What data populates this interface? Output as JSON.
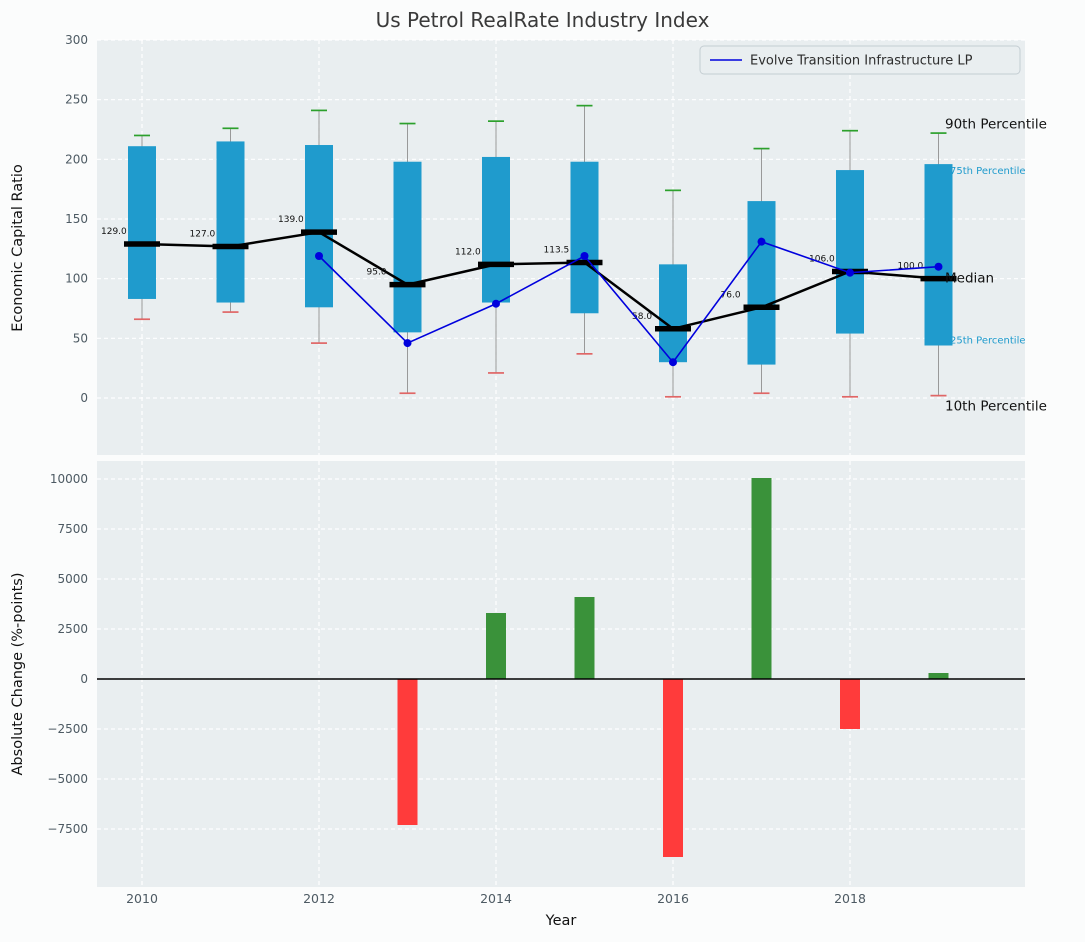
{
  "title": "Us Petrol RealRate Industry Index",
  "legend": {
    "series_label": "Evolve Transition Infrastructure LP"
  },
  "colors": {
    "figure_bg": "#fbfcfc",
    "axes_bg": "#e9eef0",
    "grid": "#ffffff",
    "box": "#1f9bcd",
    "whisker": "#999999",
    "cap_high": "#2ca02c",
    "cap_low": "#e06666",
    "median": "#000000",
    "company_line": "#0000dd",
    "bar_up": "#3a923a",
    "bar_down": "#ff3b3b",
    "tick_label": "#4d5a63",
    "text": "#111111",
    "title_color": "#3a3a3a",
    "percentile_minor": "#1f9bcd"
  },
  "chart_data": [
    {
      "type": "box",
      "title": "Us Petrol RealRate Industry Index",
      "ylabel": "Economic Capital Ratio",
      "ylim": [
        -48,
        300
      ],
      "yticks": [
        0,
        50,
        100,
        150,
        200,
        250,
        300
      ],
      "xticks": [
        2010,
        2012,
        2014,
        2016,
        2018
      ],
      "grid": true,
      "legend_position": "upper right",
      "years": [
        2010,
        2011,
        2012,
        2013,
        2014,
        2015,
        2016,
        2017,
        2018,
        2019
      ],
      "boxes": [
        {
          "year": 2010,
          "p10": 66,
          "q1": 83,
          "median": 129.0,
          "q3": 211,
          "p90": 220,
          "label": "129.0"
        },
        {
          "year": 2011,
          "p10": 72,
          "q1": 80,
          "median": 127.0,
          "q3": 215,
          "p90": 226,
          "label": "127.0"
        },
        {
          "year": 2012,
          "p10": 46,
          "q1": 76,
          "median": 139.0,
          "q3": 212,
          "p90": 241,
          "label": "139.0"
        },
        {
          "year": 2013,
          "p10": 4,
          "q1": 55,
          "median": 95.0,
          "q3": 198,
          "p90": 230,
          "label": "95.0"
        },
        {
          "year": 2014,
          "p10": 21,
          "q1": 80,
          "median": 112.0,
          "q3": 202,
          "p90": 232,
          "label": "112.0"
        },
        {
          "year": 2015,
          "p10": 37,
          "q1": 71,
          "median": 113.5,
          "q3": 198,
          "p90": 245,
          "label": "113.5"
        },
        {
          "year": 2016,
          "p10": 1,
          "q1": 30,
          "median": 58.0,
          "q3": 112,
          "p90": 174,
          "label": "58.0"
        },
        {
          "year": 2017,
          "p10": 4,
          "q1": 28,
          "median": 76.0,
          "q3": 165,
          "p90": 209,
          "label": "76.0"
        },
        {
          "year": 2018,
          "p10": 1,
          "q1": 54,
          "median": 106.0,
          "q3": 191,
          "p90": 224,
          "label": "106.0"
        },
        {
          "year": 2019,
          "p10": 2,
          "q1": 44,
          "median": 100.0,
          "q3": 196,
          "p90": 222,
          "label": "100.0"
        }
      ],
      "company_series": {
        "name": "Evolve Transition Infrastructure LP",
        "years": [
          2012,
          2013,
          2014,
          2015,
          2016,
          2017,
          2018,
          2019
        ],
        "values": [
          119,
          46,
          79,
          119,
          30,
          131,
          105,
          110
        ]
      },
      "right_annotations": [
        {
          "text": "90th Percentile",
          "value": 229,
          "style": "major"
        },
        {
          "text": "75th Percentile",
          "value": 191,
          "style": "minor"
        },
        {
          "text": "Median",
          "value": 100,
          "style": "major"
        },
        {
          "text": "25th Percentile",
          "value": 49,
          "style": "minor"
        },
        {
          "text": "10th Percentile",
          "value": -7,
          "style": "major"
        }
      ]
    },
    {
      "type": "bar",
      "ylabel": "Absolute Change (%-points)",
      "xlabel": "Year",
      "ylim": [
        -10400,
        10900
      ],
      "yticks": [
        -7500,
        -5000,
        -2500,
        0,
        2500,
        5000,
        7500,
        10000
      ],
      "xticks": [
        2010,
        2012,
        2014,
        2016,
        2018
      ],
      "grid": true,
      "categories": [
        2010,
        2011,
        2012,
        2013,
        2014,
        2015,
        2016,
        2017,
        2018,
        2019
      ],
      "values": [
        null,
        null,
        null,
        -7300,
        3300,
        4100,
        -8900,
        10050,
        -2500,
        300
      ]
    }
  ]
}
